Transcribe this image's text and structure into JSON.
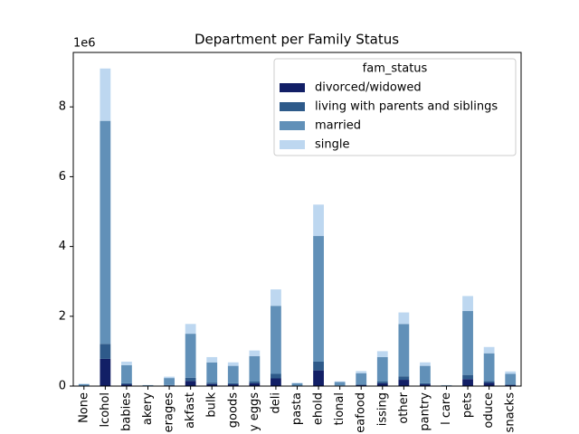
{
  "chart_data": {
    "type": "stacked_bar",
    "title": "Department per Family Status",
    "y_offset_label": "1e6",
    "categories": [
      "None",
      "lcohol",
      "babies",
      "akery",
      "erages",
      "akfast",
      "bulk",
      "goods",
      "y eggs",
      "deli",
      "pasta",
      "ehold",
      "tional",
      "eafood",
      "issing",
      "other",
      "pantry",
      "l care",
      "pets",
      "oduce",
      "snacks"
    ],
    "series": [
      {
        "name": "divorced/widowed",
        "color": "#121f66",
        "values": [
          0.005,
          0.78,
          0.05,
          0.003,
          0.02,
          0.15,
          0.06,
          0.05,
          0.08,
          0.22,
          0.007,
          0.45,
          0.01,
          0.03,
          0.08,
          0.18,
          0.05,
          0.002,
          0.2,
          0.09,
          0.03
        ]
      },
      {
        "name": "living with parents and siblings",
        "color": "#2e5a8a",
        "values": [
          0.003,
          0.43,
          0.03,
          0.002,
          0.01,
          0.09,
          0.04,
          0.03,
          0.05,
          0.13,
          0.004,
          0.25,
          0.006,
          0.02,
          0.05,
          0.1,
          0.03,
          0.001,
          0.12,
          0.05,
          0.02
        ]
      },
      {
        "name": "married",
        "color": "#6190b8",
        "values": [
          0.05,
          6.39,
          0.52,
          0.02,
          0.2,
          1.26,
          0.58,
          0.5,
          0.73,
          1.95,
          0.07,
          3.6,
          0.1,
          0.32,
          0.7,
          1.5,
          0.5,
          0.02,
          1.83,
          0.8,
          0.3
        ]
      },
      {
        "name": "single",
        "color": "#bdd7f0",
        "values": [
          0.01,
          1.5,
          0.1,
          0.005,
          0.04,
          0.28,
          0.15,
          0.1,
          0.16,
          0.47,
          0.015,
          0.9,
          0.02,
          0.06,
          0.17,
          0.33,
          0.1,
          0.005,
          0.43,
          0.18,
          0.07
        ]
      }
    ],
    "legend_title": "fam_status",
    "legend": "upper right",
    "ylim": [
      0,
      9.56
    ],
    "yticks": [
      0,
      2,
      4,
      6,
      8
    ]
  }
}
